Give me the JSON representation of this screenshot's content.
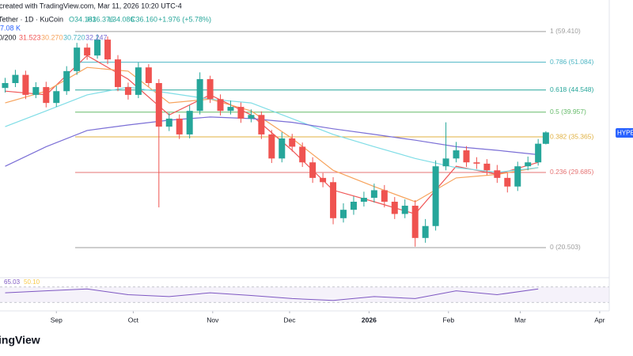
{
  "header": {
    "credit": "created with TradingView.com, Mar 11, 2026 10:20 UTC-4",
    "symbol": "Tether · 1D · KuCoin",
    "ohlc": [
      "O34.181",
      "H36.376",
      "L34.086",
      "C36.160"
    ],
    "change": "+1.976 (+5.78%)",
    "volume": "7.08 K",
    "ma_label": "0/200",
    "ma_values": [
      "31.523",
      "30.270",
      "30.720",
      "32.247"
    ],
    "price_tag": "HYPEU",
    "logo": "ingView"
  },
  "chart_data": {
    "type": "candlestick",
    "x": [
      2,
      6,
      10,
      14,
      18,
      22,
      26,
      30,
      34,
      38,
      42,
      46,
      50,
      54,
      58,
      62,
      66,
      70,
      74,
      78,
      82,
      86,
      90,
      94,
      98,
      102,
      106,
      110,
      114,
      118,
      122,
      126,
      130,
      134,
      138,
      142,
      146,
      150,
      154,
      158,
      162,
      166,
      170,
      174,
      178,
      182,
      186,
      190,
      194,
      198,
      202,
      206,
      210,
      213
    ],
    "open": [
      45.0,
      46.1,
      48.0,
      43.5,
      45.2,
      41.8,
      44.3,
      48.9,
      54.9,
      52.8,
      57.1,
      51.8,
      45.2,
      43.5,
      49.8,
      46.1,
      37.2,
      38.7,
      35.8,
      40.2,
      47.0,
      42.6,
      40.2,
      41.0,
      38.7,
      39.4,
      35.8,
      31.8,
      35.1,
      33.7,
      31.2,
      28.9,
      28.3,
      23.7,
      24.7,
      25.7,
      26.2,
      27.2,
      25.7,
      24.2,
      25.2,
      21.5,
      22.8,
      30.6,
      31.8,
      33.1,
      31.2,
      31.0,
      30.0,
      28.9,
      27.7,
      30.6,
      31.2,
      34.181
    ],
    "high": [
      47.3,
      49.2,
      49.0,
      46.3,
      46.4,
      45.5,
      50.1,
      56.2,
      56.0,
      58.6,
      58.0,
      52.9,
      46.2,
      51.0,
      50.6,
      47.0,
      39.8,
      39.5,
      41.3,
      48.6,
      47.8,
      43.6,
      42.3,
      41.9,
      40.5,
      40.1,
      36.6,
      36.2,
      35.9,
      34.4,
      32.0,
      29.6,
      29.0,
      25.5,
      26.4,
      27.0,
      28.1,
      27.9,
      26.3,
      26.0,
      25.9,
      23.6,
      31.5,
      38.0,
      34.5,
      33.8,
      32.0,
      31.7,
      30.8,
      29.6,
      31.3,
      32.1,
      35.0,
      36.376
    ],
    "low": [
      44.0,
      45.2,
      42.6,
      42.8,
      40.9,
      41.0,
      43.5,
      48.0,
      51.7,
      52.0,
      50.6,
      44.3,
      42.5,
      42.8,
      45.3,
      25.0,
      36.4,
      35.0,
      35.1,
      39.5,
      41.8,
      39.3,
      39.5,
      37.9,
      38.0,
      35.0,
      31.1,
      31.2,
      32.9,
      30.5,
      28.2,
      27.6,
      23.0,
      23.2,
      24.1,
      25.1,
      25.6,
      25.0,
      23.6,
      23.7,
      20.6,
      21.0,
      22.3,
      30.0,
      31.2,
      30.5,
      30.2,
      29.3,
      28.2,
      26.9,
      27.1,
      30.0,
      30.7,
      34.086
    ],
    "close": [
      46.1,
      48.0,
      43.5,
      45.2,
      41.8,
      44.3,
      48.9,
      54.9,
      52.8,
      57.1,
      51.8,
      45.2,
      43.5,
      49.8,
      46.1,
      37.2,
      38.7,
      35.8,
      40.2,
      47.0,
      42.6,
      40.2,
      41.0,
      38.7,
      39.4,
      35.8,
      31.8,
      35.1,
      33.7,
      31.2,
      28.9,
      28.3,
      23.7,
      24.7,
      25.7,
      26.2,
      27.2,
      25.7,
      24.2,
      25.2,
      21.5,
      22.8,
      30.6,
      31.8,
      33.1,
      31.2,
      31.0,
      30.0,
      28.9,
      27.7,
      30.6,
      31.2,
      34.2,
      36.16
    ],
    "up_color": "#26a69a",
    "down_color": "#ef5350",
    "ylim": [
      17.75,
      69.4
    ],
    "log_scale": true,
    "xlim": [
      0,
      247
    ],
    "xticks": [
      {
        "value": 22,
        "label": "Sep"
      },
      {
        "value": 52,
        "label": "Oct"
      },
      {
        "value": 83,
        "label": "Nov"
      },
      {
        "value": 113,
        "label": "Dec"
      },
      {
        "value": 144,
        "label": "2026"
      },
      {
        "value": 175,
        "label": "Feb"
      },
      {
        "value": 203,
        "label": "Mar"
      },
      {
        "value": 234,
        "label": "Apr"
      }
    ],
    "moving_averages": [
      {
        "color": "#f05656",
        "x": [
          2,
          18,
          34,
          50,
          66,
          82,
          98,
          114,
          130,
          146,
          162,
          178,
          194,
          210
        ],
        "values": [
          44.3,
          43.5,
          52.8,
          47.0,
          39.4,
          43.5,
          39.4,
          33.1,
          27.2,
          25.7,
          24.2,
          30.6,
          29.4,
          31.2
        ]
      },
      {
        "color": "#f7a35c",
        "x": [
          2,
          18,
          34,
          50,
          66,
          82,
          98,
          114,
          130,
          146,
          162,
          178,
          194,
          210
        ],
        "values": [
          41.8,
          44.3,
          49.8,
          48.9,
          41.8,
          42.6,
          40.2,
          35.1,
          30.0,
          27.7,
          25.7,
          28.9,
          29.4,
          30.4
        ]
      },
      {
        "color": "#7fdde6",
        "x": [
          2,
          18,
          34,
          50,
          66,
          82,
          98,
          114,
          130,
          146,
          162,
          178,
          194,
          210
        ],
        "values": [
          37.2,
          40.2,
          43.5,
          45.2,
          43.9,
          42.6,
          41.8,
          38.7,
          35.8,
          33.7,
          31.8,
          30.4,
          29.7,
          30.4
        ]
      },
      {
        "color": "#7b6fd6",
        "x": [
          2,
          18,
          34,
          50,
          66,
          82,
          98,
          114,
          130,
          146,
          162,
          178,
          194,
          210
        ],
        "values": [
          30.6,
          33.7,
          36.5,
          37.5,
          38.4,
          39.0,
          38.7,
          38.0,
          36.8,
          35.8,
          34.8,
          33.7,
          33.1,
          32.4
        ]
      }
    ],
    "fib_levels": [
      {
        "price": 59.41,
        "label": "1 (59.410)",
        "color": "#9e9e9e"
      },
      {
        "price": 51.084,
        "label": "0.786 (51.084)",
        "color": "#4db6c4"
      },
      {
        "price": 44.548,
        "label": "0.618 (44.548)",
        "color": "#26a69a"
      },
      {
        "price": 39.957,
        "label": "0.5 (39.957)",
        "color": "#66bb6a"
      },
      {
        "price": 35.365,
        "label": "0.382 (35.365)",
        "color": "#e0b040"
      },
      {
        "price": 29.685,
        "label": "0.236 (29.685)",
        "color": "#e57373"
      },
      {
        "price": 20.503,
        "label": "0 (20.503)",
        "color": "#9e9e9e"
      }
    ],
    "rsi": {
      "color": "#7e57c2",
      "x": [
        2,
        18,
        34,
        50,
        66,
        82,
        98,
        114,
        130,
        146,
        162,
        178,
        194,
        210
      ],
      "values": [
        55,
        60,
        65,
        50,
        45,
        55,
        48,
        40,
        35,
        45,
        40,
        60,
        50,
        65
      ],
      "ylim": [
        10,
        90
      ],
      "levels": [
        30,
        70
      ],
      "value_text": "65.03",
      "ma_text": "50.10"
    }
  }
}
